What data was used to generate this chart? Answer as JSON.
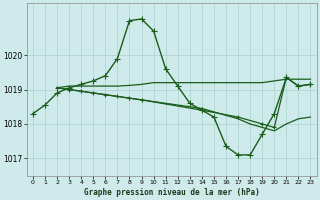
{
  "title": "Graphe pression niveau de la mer (hPa)",
  "bg_color": "#ceeaea",
  "grid_color": "#b0d4d4",
  "line_color": "#1a5c1a",
  "xlim": [
    -0.5,
    23.5
  ],
  "ylim": [
    1016.5,
    1021.5
  ],
  "yticks": [
    1017,
    1018,
    1019,
    1020
  ],
  "xticks": [
    0,
    1,
    2,
    3,
    4,
    5,
    6,
    7,
    8,
    9,
    10,
    11,
    12,
    13,
    14,
    15,
    16,
    17,
    18,
    19,
    20,
    21,
    22,
    23
  ],
  "series": [
    {
      "x": [
        0,
        1,
        2,
        3,
        4,
        5,
        6,
        7,
        8,
        9,
        10,
        11,
        12,
        13,
        14,
        15,
        16,
        17,
        18,
        19,
        20,
        21,
        22,
        23
      ],
      "y": [
        1018.3,
        1018.55,
        1018.9,
        1019.05,
        1019.15,
        1019.25,
        1019.4,
        1019.9,
        1021.0,
        1021.05,
        1020.7,
        1019.6,
        1019.1,
        1018.6,
        1018.4,
        1018.2,
        1017.35,
        1017.1,
        1017.1,
        1017.7,
        1018.3,
        1019.35,
        1019.1,
        1019.15
      ],
      "marker": "+",
      "markersize": 4,
      "lw": 1.0
    },
    {
      "x": [
        2,
        3,
        4,
        5,
        6,
        7,
        8,
        9,
        10,
        11,
        12,
        13,
        14,
        15,
        16,
        17,
        18,
        19,
        20,
        21,
        22,
        23
      ],
      "y": [
        1019.05,
        1019.1,
        1019.1,
        1019.1,
        1019.1,
        1019.1,
        1019.12,
        1019.15,
        1019.2,
        1019.2,
        1019.2,
        1019.2,
        1019.2,
        1019.2,
        1019.2,
        1019.2,
        1019.2,
        1019.2,
        1019.25,
        1019.3,
        1019.3,
        1019.3
      ],
      "marker": null,
      "markersize": 0,
      "lw": 0.9
    },
    {
      "x": [
        2,
        3,
        4,
        5,
        6,
        7,
        8,
        9,
        10,
        11,
        12,
        13,
        14,
        15,
        16,
        17,
        18,
        19,
        20,
        21,
        22,
        23
      ],
      "y": [
        1019.05,
        1019.0,
        1018.95,
        1018.9,
        1018.85,
        1018.8,
        1018.75,
        1018.7,
        1018.65,
        1018.6,
        1018.55,
        1018.5,
        1018.45,
        1018.35,
        1018.25,
        1018.15,
        1018.0,
        1017.9,
        1017.8,
        1018.0,
        1018.15,
        1018.2
      ],
      "marker": null,
      "markersize": 0,
      "lw": 0.9
    },
    {
      "x": [
        2,
        3,
        4,
        5,
        6,
        7,
        8,
        9,
        14,
        17,
        19,
        20,
        21,
        22,
        23
      ],
      "y": [
        1019.05,
        1019.0,
        1018.95,
        1018.9,
        1018.85,
        1018.8,
        1018.75,
        1018.7,
        1018.4,
        1018.2,
        1018.0,
        1017.9,
        1019.35,
        1019.1,
        1019.15
      ],
      "marker": "+",
      "markersize": 3,
      "lw": 0.9
    }
  ]
}
